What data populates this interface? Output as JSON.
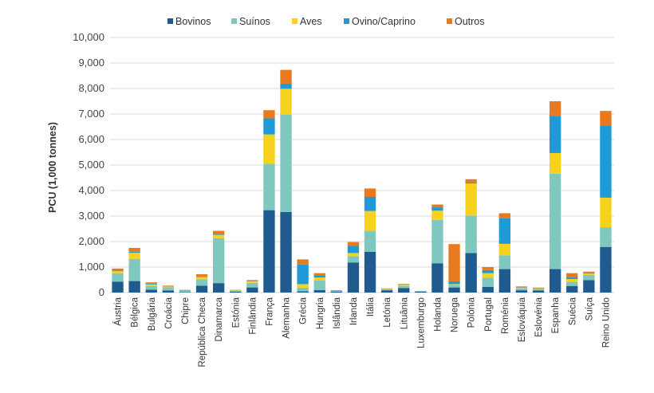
{
  "chart_data": {
    "type": "bar",
    "stacked": true,
    "title": "",
    "xlabel": "",
    "ylabel": "PCU (1,000 tonnes)",
    "ylim": [
      0,
      10000
    ],
    "yticks": [
      "0",
      "1,000",
      "2,000",
      "3,000",
      "4,000",
      "5,000",
      "6,000",
      "7,000",
      "8,000",
      "9,000",
      "10,000"
    ],
    "grid": true,
    "legend_position": "top",
    "categories": [
      "Áustria",
      "Bélgica",
      "Bulgária",
      "Croácia",
      "Chipre",
      "República Checa",
      "Dinamarca",
      "Estónia",
      "Finlândia",
      "França",
      "Alemanha",
      "Grécia",
      "Hungria",
      "Islândia",
      "Irlanda",
      "Itália",
      "Letónia",
      "Lituânia",
      "Luxemburgo",
      "Holanda",
      "Noruega",
      "Polónia",
      "Portugal",
      "Roménia",
      "Eslováquia",
      "Eslovénia",
      "Espanha",
      "Suécia",
      "Suíça",
      "Reino Unido"
    ],
    "series": [
      {
        "name": "Bovinos",
        "color": "#1f5b8e",
        "values": [
          430,
          450,
          110,
          80,
          20,
          270,
          370,
          40,
          200,
          3230,
          3160,
          50,
          100,
          40,
          1180,
          1600,
          90,
          180,
          40,
          1150,
          200,
          1550,
          220,
          920,
          90,
          80,
          920,
          260,
          490,
          1790
        ]
      },
      {
        "name": "Suínos",
        "color": "#7fc8bf",
        "values": [
          330,
          870,
          150,
          130,
          50,
          250,
          1760,
          40,
          180,
          1820,
          3810,
          140,
          370,
          20,
          250,
          820,
          40,
          90,
          20,
          1700,
          100,
          1470,
          360,
          540,
          70,
          60,
          3740,
          160,
          200,
          770
        ]
      },
      {
        "name": "Aves",
        "color": "#f6d21d",
        "values": [
          80,
          240,
          60,
          30,
          10,
          90,
          130,
          15,
          60,
          1150,
          1020,
          140,
          120,
          5,
          120,
          780,
          10,
          40,
          5,
          360,
          30,
          1260,
          180,
          450,
          30,
          20,
          810,
          110,
          50,
          1160
        ]
      },
      {
        "name": "Ovino/Caprino",
        "color": "#1e9ad6",
        "values": [
          30,
          40,
          30,
          10,
          20,
          20,
          20,
          5,
          10,
          630,
          200,
          770,
          90,
          20,
          280,
          550,
          5,
          10,
          0,
          130,
          110,
          40,
          120,
          1000,
          10,
          5,
          1460,
          60,
          20,
          2830
        ]
      },
      {
        "name": "Outros",
        "color": "#e8791d",
        "values": [
          70,
          150,
          50,
          20,
          10,
          90,
          140,
          10,
          40,
          320,
          540,
          200,
          80,
          10,
          150,
          330,
          20,
          20,
          0,
          110,
          1460,
          120,
          120,
          200,
          40,
          30,
          570,
          170,
          60,
          570
        ]
      }
    ]
  }
}
